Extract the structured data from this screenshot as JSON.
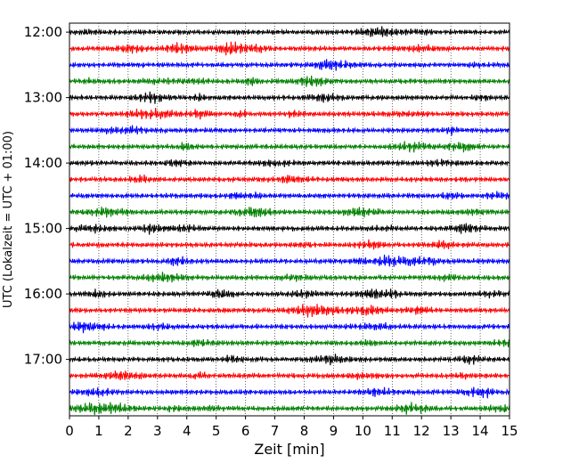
{
  "chart_data": {
    "type": "line",
    "title": "",
    "xlabel": "Zeit  [min]",
    "ylabel": "UTC (Lokalzeit = UTC + 01:00)",
    "xlim": [
      0,
      15
    ],
    "x_ticks": [
      "0",
      "1",
      "2",
      "3",
      "4",
      "5",
      "6",
      "7",
      "8",
      "9",
      "10",
      "11",
      "12",
      "13",
      "14",
      "15"
    ],
    "y_ticks": [
      {
        "label": "12:00",
        "row": 0
      },
      {
        "label": "13:00",
        "row": 4
      },
      {
        "label": "14:00",
        "row": 8
      },
      {
        "label": "15:00",
        "row": 12
      },
      {
        "label": "16:00",
        "row": 16
      },
      {
        "label": "17:00",
        "row": 20
      }
    ],
    "grid": "vertical dotted at each minute",
    "trace_colors": [
      "#000000",
      "#ff0000",
      "#0000ff",
      "#008000"
    ],
    "row_start_times": [
      "12:00",
      "12:15",
      "12:30",
      "12:45",
      "13:00",
      "13:15",
      "13:30",
      "13:45",
      "14:00",
      "14:15",
      "14:30",
      "14:45",
      "15:00",
      "15:15",
      "15:30",
      "15:45",
      "16:00",
      "16:15",
      "16:30",
      "16:45",
      "17:00",
      "17:15",
      "17:30",
      "17:45"
    ]
  }
}
